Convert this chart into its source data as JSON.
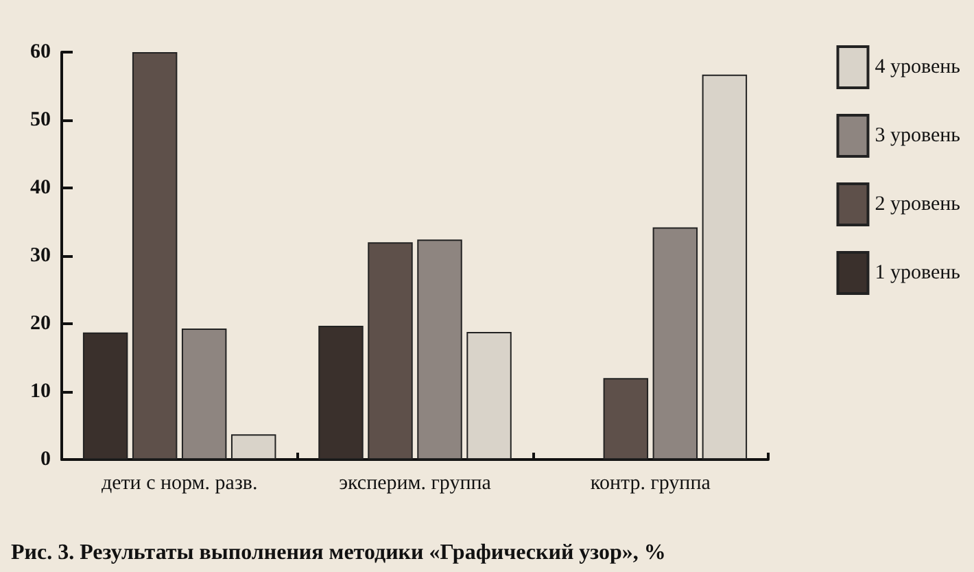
{
  "chart_data": {
    "type": "bar",
    "categories": [
      "дети с норм. разв.",
      "эксперим. группа",
      "контр. группа"
    ],
    "series": [
      {
        "name": "1 уровень",
        "color": "#3a302c",
        "values": [
          18.7,
          19.7,
          null
        ]
      },
      {
        "name": "2 уровень",
        "color": "#5e504a",
        "values": [
          60,
          32,
          12
        ]
      },
      {
        "name": "3 уровень",
        "color": "#8e8580",
        "values": [
          19.3,
          32.4,
          34.2
        ]
      },
      {
        "name": "4 уровень",
        "color": "#d9d3c9",
        "values": [
          3.7,
          18.8,
          56.7
        ]
      }
    ],
    "ylim": [
      0,
      60
    ],
    "yticks": [
      0,
      10,
      20,
      30,
      40,
      50,
      60
    ],
    "grid": false,
    "legend": "right",
    "annotations": [
      "Рис. 3. Результаты выполнения методики «Графический узор», %"
    ]
  }
}
